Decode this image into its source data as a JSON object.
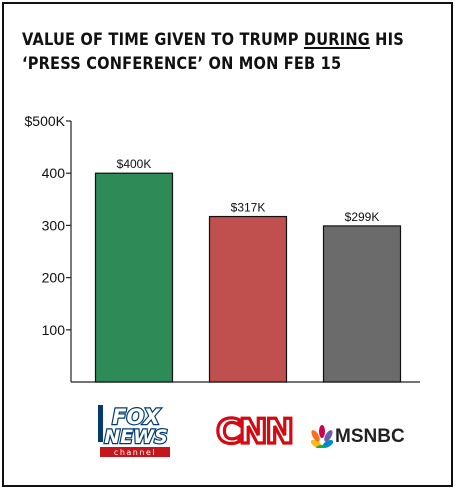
{
  "chart_data": {
    "type": "bar",
    "title_parts": [
      "Value of time given to Trump ",
      "during",
      " his",
      "‘Press Conference’ on Mon Feb 15"
    ],
    "categories": [
      "FOX NEWS",
      "CNN",
      "MSNBC"
    ],
    "values": [
      400,
      317,
      299
    ],
    "value_labels": [
      "$400K",
      "$317K",
      "$299K"
    ],
    "ytick_values": [
      100,
      200,
      300,
      400,
      500
    ],
    "ytick_labels": [
      "100",
      "200",
      "300",
      "400",
      "$500K"
    ],
    "ylim": [
      0,
      500
    ],
    "xlabel": "",
    "ylabel": "",
    "grid": false,
    "colors": [
      "#2e8b57",
      "#c0504d",
      "#6b6b6b"
    ]
  },
  "logos": {
    "fox": {
      "line1": "FOX",
      "line2": "NEWS",
      "line3": "channel"
    },
    "cnn": {
      "text": "CNN"
    },
    "msnbc": {
      "text": "MSNBC"
    }
  }
}
